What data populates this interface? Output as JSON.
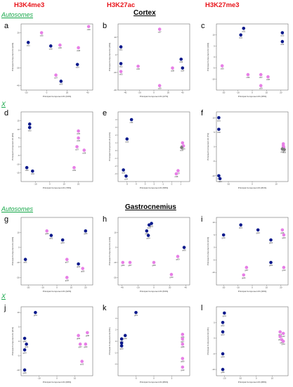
{
  "header": {
    "col1": "H3K4me3",
    "col2": "H3K27ac",
    "col3": "H3K27me3",
    "tissue_top": "Cortex",
    "tissue_bottom": "Gastrocnemius",
    "autosomes_top": "Autosomes",
    "x_top": "X",
    "autosomes_bottom": "Autosomes",
    "x_bottom": "X"
  },
  "colors": {
    "blue": "#0a1a8c",
    "pink": "#e77fe6",
    "grey": "#7a7a7a"
  },
  "chart_data": [
    {
      "id": "a",
      "type": "scatter",
      "xlabel": "Principal Component #1 [34%]",
      "ylabel": "Principal Component #2 [22%]",
      "xlim": [
        -25,
        45
      ],
      "ylim": [
        -45,
        30
      ],
      "xticks": [
        -20,
        0,
        20,
        40
      ],
      "yticks": [
        -40,
        -20,
        0,
        20
      ],
      "series": [
        {
          "color": "blue",
          "points": [
            {
              "x": -18,
              "y": 9,
              "label": "ct01"
            },
            {
              "x": 4,
              "y": 5,
              "label": "ct02"
            },
            {
              "x": 14,
              "y": -35,
              "label": "ct03"
            },
            {
              "x": 30,
              "y": -16,
              "label": "ct04"
            }
          ]
        },
        {
          "color": "pink",
          "points": [
            {
              "x": -5,
              "y": 20,
              "label": "ct05"
            },
            {
              "x": 13,
              "y": 6,
              "label": "ct06"
            },
            {
              "x": 9,
              "y": -28,
              "label": "ct07"
            },
            {
              "x": 31,
              "y": 3,
              "label": "ct08"
            },
            {
              "x": 41,
              "y": 27,
              "label": "ct09"
            }
          ]
        }
      ]
    },
    {
      "id": "b",
      "type": "scatter",
      "xlabel": "Principal Component #1 [47%]",
      "ylabel": "Principal Component #2 [18%]",
      "xlim": [
        -50,
        50
      ],
      "ylim": [
        -40,
        35
      ],
      "xticks": [
        -40,
        -20,
        0,
        20,
        40
      ],
      "yticks": [
        -40,
        -20,
        0,
        20
      ],
      "series": [
        {
          "color": "blue",
          "points": [
            {
              "x": -46,
              "y": 9,
              "label": "ct01"
            },
            {
              "x": -46,
              "y": -10,
              "label": "ct02"
            },
            {
              "x": 38,
              "y": -5,
              "label": "ct03"
            },
            {
              "x": 40,
              "y": -15,
              "label": "ct04"
            }
          ]
        },
        {
          "color": "pink",
          "points": [
            {
              "x": -46,
              "y": -19,
              "label": "ct05"
            },
            {
              "x": -22,
              "y": -13,
              "label": "ct06"
            },
            {
              "x": 8,
              "y": 29,
              "label": "ct07"
            },
            {
              "x": 26,
              "y": -15,
              "label": "ct08"
            },
            {
              "x": 8,
              "y": -35,
              "label": "ct09"
            }
          ]
        }
      ]
    },
    {
      "id": "c",
      "type": "scatter",
      "xlabel": "Principal Component #1 [35%]",
      "ylabel": "Principal Component #2 [19%]",
      "xlim": [
        -25,
        25
      ],
      "ylim": [
        -15,
        15
      ],
      "xticks": [
        -20,
        -10,
        0,
        10,
        20
      ],
      "yticks": [
        -10,
        -5,
        0,
        5,
        10
      ],
      "series": [
        {
          "color": "blue",
          "points": [
            {
              "x": -6,
              "y": 13,
              "label": "ct01"
            },
            {
              "x": -8,
              "y": 10,
              "label": "ct02"
            },
            {
              "x": 21,
              "y": 11,
              "label": "ct03"
            },
            {
              "x": 21,
              "y": 7,
              "label": "ct04"
            }
          ]
        },
        {
          "color": "pink",
          "points": [
            {
              "x": -21,
              "y": -4,
              "label": "ct05"
            },
            {
              "x": -3,
              "y": -8,
              "label": "ct06"
            },
            {
              "x": 6,
              "y": -8,
              "label": "ct07"
            },
            {
              "x": 11,
              "y": -9,
              "label": "ct08"
            },
            {
              "x": 6,
              "y": -13,
              "label": "ct09"
            }
          ]
        }
      ]
    },
    {
      "id": "d",
      "type": "scatter",
      "xlabel": "Principal Component #1 [78%]",
      "ylabel": "Principal Component #2 [9%]",
      "xlim": [
        -20,
        30
      ],
      "ylim": [
        -20,
        20
      ],
      "xticks": [
        -10,
        0,
        10,
        20
      ],
      "yticks": [
        -15,
        -10,
        -5,
        0,
        5,
        10,
        15
      ],
      "series": [
        {
          "color": "blue",
          "points": [
            {
              "x": -14,
              "y": 13,
              "label": "ct01"
            },
            {
              "x": -14,
              "y": 11,
              "label": "ct02"
            },
            {
              "x": -16,
              "y": -12,
              "label": "ct03"
            },
            {
              "x": -12,
              "y": -14,
              "label": "ct04"
            }
          ]
        },
        {
          "color": "pink",
          "points": [
            {
              "x": 20,
              "y": 9,
              "label": "ct05"
            },
            {
              "x": 20,
              "y": 5,
              "label": "ct06"
            },
            {
              "x": 19,
              "y": 0,
              "label": "ct07"
            },
            {
              "x": 24,
              "y": -2,
              "label": "ct08"
            },
            {
              "x": 17,
              "y": -12,
              "label": "ct09"
            }
          ]
        }
      ]
    },
    {
      "id": "e",
      "type": "scatter",
      "xlabel": "Principal Component #1 [58%]",
      "ylabel": "Principal Component #2 [13%]",
      "xlim": [
        -6,
        2
      ],
      "ylim": [
        -4,
        5
      ],
      "xticks": [
        -5,
        -4,
        -3,
        -2,
        -1,
        0,
        1
      ],
      "yticks": [
        -3,
        -2,
        -1,
        0,
        1,
        2,
        3,
        4
      ],
      "series": [
        {
          "color": "blue",
          "points": [
            {
              "x": -4.5,
              "y": 4,
              "label": "ct01"
            },
            {
              "x": -5,
              "y": 1.5,
              "label": "ct02"
            },
            {
              "x": -5.4,
              "y": -2.5,
              "label": "ct03"
            },
            {
              "x": -5.1,
              "y": -3.3,
              "label": "ct04"
            }
          ]
        },
        {
          "color": "pink",
          "points": [
            {
              "x": 1.2,
              "y": 1,
              "label": "ct05"
            },
            {
              "x": 1.3,
              "y": 0.6,
              "label": "ct06"
            },
            {
              "x": 0.7,
              "y": -2.6,
              "label": "ct07"
            },
            {
              "x": 0.5,
              "y": -3.0,
              "label": "ct08"
            }
          ]
        },
        {
          "color": "grey",
          "points": [
            {
              "x": 1.1,
              "y": 0.4,
              "label": "ct09"
            }
          ]
        }
      ]
    },
    {
      "id": "f",
      "type": "scatter",
      "xlabel": "Principal Component #1 [81%]",
      "ylabel": "Principal Component #2 [7%]",
      "xlim": [
        -15,
        15
      ],
      "ylim": [
        -12,
        12
      ],
      "xticks": [
        -10,
        0,
        10
      ],
      "yticks": [
        -10,
        -5,
        0,
        5,
        10
      ],
      "series": [
        {
          "color": "blue",
          "points": [
            {
              "x": -14,
              "y": 10,
              "label": "ct01"
            },
            {
              "x": -14,
              "y": 6,
              "label": "ct02"
            },
            {
              "x": -14,
              "y": -10,
              "label": "ct03"
            },
            {
              "x": -13.5,
              "y": -11,
              "label": "ct04"
            }
          ]
        },
        {
          "color": "pink",
          "points": [
            {
              "x": 13,
              "y": 1,
              "label": "ct05"
            },
            {
              "x": 13,
              "y": 0.4,
              "label": "ct06"
            },
            {
              "x": 13.2,
              "y": -0.2,
              "label": "ct07"
            }
          ]
        },
        {
          "color": "grey",
          "points": [
            {
              "x": 12.6,
              "y": -0.8,
              "label": "ct08"
            },
            {
              "x": 13.4,
              "y": -1,
              "label": "ct09"
            }
          ]
        }
      ]
    },
    {
      "id": "g",
      "type": "scatter",
      "xlabel": "Principal Component #1 [32%]",
      "ylabel": "Principal Component #2 [19%]",
      "xlim": [
        -25,
        25
      ],
      "ylim": [
        -25,
        20
      ],
      "xticks": [
        -20,
        -10,
        0,
        10,
        20
      ],
      "yticks": [
        -20,
        -10,
        0,
        10
      ],
      "series": [
        {
          "color": "blue",
          "points": [
            {
              "x": -22,
              "y": -8,
              "label": "gt01"
            },
            {
              "x": -4,
              "y": 8,
              "label": "gt02"
            },
            {
              "x": 4,
              "y": 5,
              "label": "gt03"
            },
            {
              "x": 15,
              "y": -11,
              "label": "gt04"
            },
            {
              "x": 20,
              "y": 11,
              "label": "gt05"
            }
          ]
        },
        {
          "color": "pink",
          "points": [
            {
              "x": -7,
              "y": 11,
              "label": "gt06"
            },
            {
              "x": 7,
              "y": -8,
              "label": "gt07"
            },
            {
              "x": 7,
              "y": -20,
              "label": "gt08"
            },
            {
              "x": 18,
              "y": -14,
              "label": "gt09"
            }
          ]
        }
      ]
    },
    {
      "id": "h",
      "type": "scatter",
      "xlabel": "Principal Component #1 [53%]",
      "ylabel": "Principal Component #2 [14%]",
      "xlim": [
        -45,
        45
      ],
      "ylim": [
        -25,
        20
      ],
      "xticks": [
        -40,
        -20,
        0,
        20,
        40
      ],
      "yticks": [
        -20,
        -10,
        0,
        10
      ],
      "series": [
        {
          "color": "blue",
          "points": [
            {
              "x": -6,
              "y": 15,
              "label": "gt01"
            },
            {
              "x": -3,
              "y": 16,
              "label": "gt02"
            },
            {
              "x": -9,
              "y": 11,
              "label": "gt03"
            },
            {
              "x": -7,
              "y": 8,
              "label": "gt04"
            },
            {
              "x": 38,
              "y": 0,
              "label": "gt05"
            }
          ]
        },
        {
          "color": "pink",
          "points": [
            {
              "x": -39,
              "y": -10,
              "label": "gt06"
            },
            {
              "x": -30,
              "y": -10,
              "label": "gt07"
            },
            {
              "x": 0,
              "y": -10,
              "label": "gt08"
            },
            {
              "x": 30,
              "y": -6,
              "label": "gt09"
            },
            {
              "x": 22,
              "y": -18,
              "label": "gt10"
            }
          ]
        }
      ]
    },
    {
      "id": "i",
      "type": "scatter",
      "xlabel": "Principal Component #1 [36%]",
      "ylabel": "Principal Component #2 [21%]",
      "xlim": [
        -25,
        25
      ],
      "ylim": [
        -15,
        12
      ],
      "xticks": [
        -20,
        -10,
        0,
        10,
        20
      ],
      "yticks": [
        -10,
        -5,
        0,
        5,
        10
      ],
      "series": [
        {
          "color": "blue",
          "points": [
            {
              "x": -20,
              "y": 5,
              "label": "gt01"
            },
            {
              "x": -8,
              "y": 9,
              "label": "gt02"
            },
            {
              "x": 4,
              "y": 7,
              "label": "gt03"
            },
            {
              "x": 13,
              "y": 3,
              "label": "gt04"
            },
            {
              "x": 13,
              "y": -6,
              "label": "gt05"
            }
          ]
        },
        {
          "color": "pink",
          "points": [
            {
              "x": -6,
              "y": -11,
              "label": "gt06"
            },
            {
              "x": -4,
              "y": -8,
              "label": "gt07"
            },
            {
              "x": 21,
              "y": 7,
              "label": "gt08"
            },
            {
              "x": 22,
              "y": 5,
              "label": "gt09"
            },
            {
              "x": 22,
              "y": -8,
              "label": "gt10"
            }
          ]
        }
      ]
    },
    {
      "id": "j",
      "type": "scatter",
      "xlabel": "Principal Component #1 [68%]",
      "ylabel": "Principal Component #2 [11%]",
      "xlim": [
        -20,
        20
      ],
      "ylim": [
        -12,
        12
      ],
      "xticks": [
        -10,
        0,
        10
      ],
      "yticks": [
        -10,
        -5,
        0,
        5,
        10
      ],
      "series": [
        {
          "color": "blue",
          "points": [
            {
              "x": -12,
              "y": 10,
              "label": "gt01"
            },
            {
              "x": -18,
              "y": 1,
              "label": "gt02"
            },
            {
              "x": -17,
              "y": -1,
              "label": "gt03"
            },
            {
              "x": -18,
              "y": -3,
              "label": "gt04"
            },
            {
              "x": -18,
              "y": -10,
              "label": "gt05"
            }
          ]
        },
        {
          "color": "pink",
          "points": [
            {
              "x": 12,
              "y": 2,
              "label": "gt06"
            },
            {
              "x": 13,
              "y": -1,
              "label": "gt07"
            },
            {
              "x": 17,
              "y": 3,
              "label": "gt08"
            },
            {
              "x": 16,
              "y": -1,
              "label": "gt09"
            },
            {
              "x": 14,
              "y": -7,
              "label": "gt10"
            }
          ]
        }
      ]
    },
    {
      "id": "k",
      "type": "scatter",
      "xlabel": "Principal Component #1 [86%]",
      "ylabel": "Principal Component #2 [5%]",
      "xlim": [
        -10,
        10
      ],
      "ylim": [
        -6,
        6
      ],
      "xticks": [
        -5,
        0,
        5
      ],
      "yticks": [
        -4,
        -2,
        0,
        2,
        4
      ],
      "series": [
        {
          "color": "blue",
          "points": [
            {
              "x": -5,
              "y": 5,
              "label": "gt01"
            },
            {
              "x": -8,
              "y": 1,
              "label": "gt02"
            },
            {
              "x": -9,
              "y": 0.4,
              "label": "gt03"
            },
            {
              "x": -9,
              "y": -0.3,
              "label": "gt04"
            },
            {
              "x": -9,
              "y": -0.8,
              "label": "gt05"
            }
          ]
        },
        {
          "color": "pink",
          "points": [
            {
              "x": 8,
              "y": 1.2,
              "label": "gt06"
            },
            {
              "x": 8,
              "y": 0.4,
              "label": "gt07"
            },
            {
              "x": 8,
              "y": -0.5,
              "label": "gt08"
            },
            {
              "x": 8,
              "y": -3,
              "label": "gt09"
            },
            {
              "x": 8,
              "y": -4.5,
              "label": "gt10"
            }
          ]
        }
      ]
    },
    {
      "id": "l",
      "type": "scatter",
      "xlabel": "Principal Component #1 [88%]",
      "ylabel": "Principal Component #2 [4%]",
      "xlim": [
        -25,
        20
      ],
      "ylim": [
        -12,
        10
      ],
      "xticks": [
        -20,
        -10,
        0,
        10
      ],
      "yticks": [
        -10,
        -5,
        0,
        5
      ],
      "series": [
        {
          "color": "blue",
          "points": [
            {
              "x": -20,
              "y": 8,
              "label": "gt01"
            },
            {
              "x": -21,
              "y": 5,
              "label": "gt02"
            },
            {
              "x": -21,
              "y": 2,
              "label": "gt03"
            },
            {
              "x": -21,
              "y": -5,
              "label": "gt04"
            },
            {
              "x": -21,
              "y": -10,
              "label": "gt05"
            }
          ]
        },
        {
          "color": "pink",
          "points": [
            {
              "x": 15,
              "y": 2,
              "label": "gt06"
            },
            {
              "x": 17,
              "y": 1.5,
              "label": "gt07"
            },
            {
              "x": 15,
              "y": 0.5,
              "label": "gt08"
            },
            {
              "x": 16,
              "y": -0.5,
              "label": "gt09"
            },
            {
              "x": 17,
              "y": -1,
              "label": "gt10"
            }
          ]
        }
      ]
    }
  ]
}
